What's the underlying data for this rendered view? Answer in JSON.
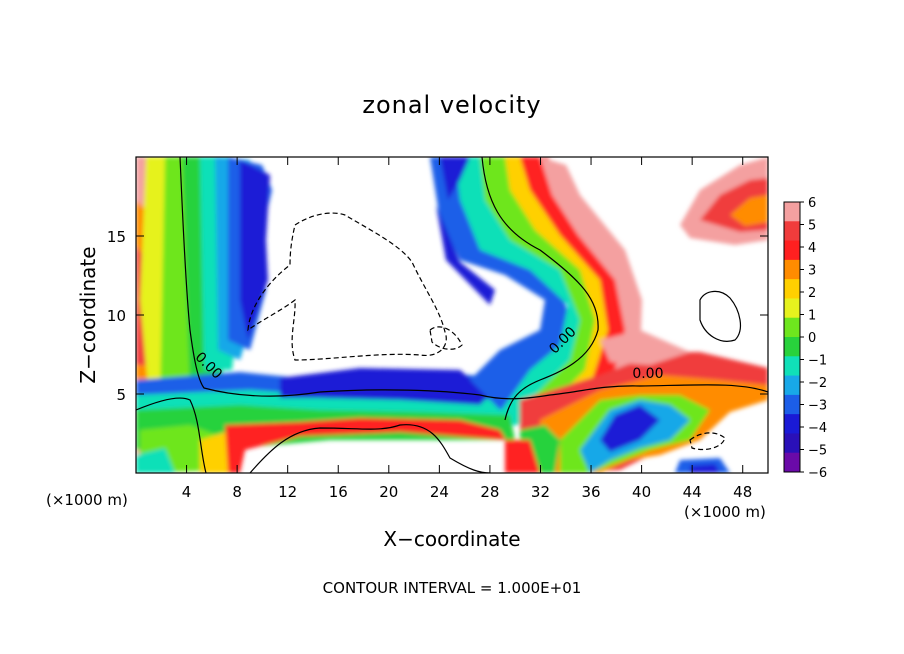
{
  "chart_data": {
    "type": "heatmap",
    "title": "zonal velocity",
    "xlabel": "X−coordinate",
    "ylabel": "Z−coordinate",
    "x_units_label": "(×1000 m)",
    "y_units_label": "(×1000 m)",
    "footer": "CONTOUR INTERVAL = 1.000E+01",
    "xlim": [
      0,
      50
    ],
    "ylim": [
      0,
      20
    ],
    "x_ticks": [
      4,
      8,
      12,
      16,
      20,
      24,
      28,
      32,
      36,
      40,
      44,
      48
    ],
    "y_ticks": [
      5,
      10,
      15
    ],
    "colorbar": {
      "levels": [
        "6",
        "5",
        "4",
        "3",
        "2",
        "1",
        "0",
        "−1",
        "−2",
        "−3",
        "−4",
        "−5",
        "−6"
      ],
      "colors": [
        "#f4a0a0",
        "#f03c3c",
        "#ff2020",
        "#ff8c00",
        "#ffd000",
        "#e6f21e",
        "#6ee61e",
        "#28d23c",
        "#10e0b8",
        "#18a8e8",
        "#1c5ee8",
        "#1a1ad6",
        "#2a10b8",
        "#6a0aa8"
      ]
    },
    "contour_labels": [
      {
        "text": "0.00",
        "x": 5.5,
        "y": 6.6
      },
      {
        "text": "0.00",
        "x": 34.0,
        "y": 8.2
      },
      {
        "text": "0.00",
        "x": 40.5,
        "y": 6.0
      }
    ],
    "legend": "right-side colorbar",
    "grid": false
  }
}
